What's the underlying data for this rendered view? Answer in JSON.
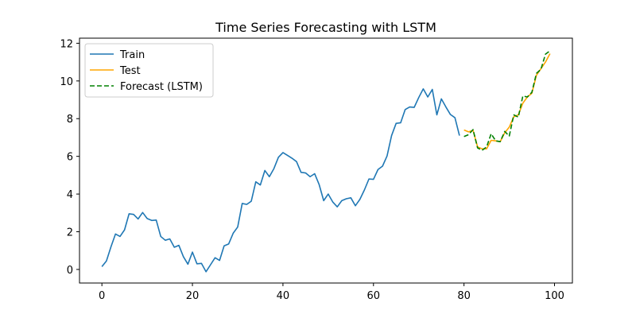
{
  "chart_data": {
    "type": "line",
    "title": "Time Series Forecasting with LSTM",
    "xlabel": "",
    "ylabel": "",
    "xlim": [
      -4.95,
      103.95
    ],
    "ylim": [
      -0.72,
      12.27
    ],
    "xticks": [
      0,
      20,
      40,
      60,
      80,
      100
    ],
    "yticks": [
      0,
      2,
      4,
      6,
      8,
      10,
      12
    ],
    "grid": false,
    "legend": "top-left",
    "series": [
      {
        "name": "Train",
        "color": "#1f77b4",
        "style": "solid",
        "x": [
          0,
          1,
          2,
          3,
          4,
          5,
          6,
          7,
          8,
          9,
          10,
          11,
          12,
          13,
          14,
          15,
          16,
          17,
          18,
          19,
          20,
          21,
          22,
          23,
          24,
          25,
          26,
          27,
          28,
          29,
          30,
          31,
          32,
          33,
          34,
          35,
          36,
          37,
          38,
          39,
          40,
          41,
          42,
          43,
          44,
          45,
          46,
          47,
          48,
          49,
          50,
          51,
          52,
          53,
          54,
          55,
          56,
          57,
          58,
          59,
          60,
          61,
          62,
          63,
          64,
          65,
          66,
          67,
          68,
          69,
          70,
          71,
          72,
          73,
          74,
          75,
          76,
          77,
          78,
          79
        ],
        "y": [
          0.15,
          0.45,
          1.2,
          1.88,
          1.75,
          2.1,
          2.95,
          2.92,
          2.68,
          3.02,
          2.7,
          2.6,
          2.62,
          1.75,
          1.55,
          1.62,
          1.18,
          1.28,
          0.68,
          0.28,
          0.92,
          0.3,
          0.32,
          -0.12,
          0.25,
          0.62,
          0.48,
          1.25,
          1.35,
          1.92,
          2.25,
          3.5,
          3.45,
          3.62,
          4.65,
          4.48,
          5.25,
          4.92,
          5.35,
          5.95,
          6.2,
          6.05,
          5.9,
          5.72,
          5.15,
          5.12,
          4.92,
          5.08,
          4.5,
          3.65,
          4.0,
          3.58,
          3.32,
          3.65,
          3.75,
          3.8,
          3.38,
          3.72,
          4.22,
          4.8,
          4.78,
          5.3,
          5.48,
          6.02,
          7.1,
          7.75,
          7.78,
          8.48,
          8.62,
          8.6,
          9.12,
          9.58,
          9.15,
          9.55,
          8.2,
          9.05,
          8.62,
          8.22,
          8.05,
          7.1
        ]
      },
      {
        "name": "Test",
        "color": "#ffa500",
        "style": "solid",
        "x": [
          80,
          81,
          82,
          83,
          84,
          85,
          86,
          87,
          88,
          89,
          90,
          91,
          92,
          93,
          94,
          95,
          96,
          97,
          98,
          99
        ],
        "y": [
          7.4,
          7.3,
          7.38,
          6.5,
          6.4,
          6.4,
          6.85,
          6.82,
          6.78,
          7.25,
          7.55,
          8.1,
          8.2,
          8.82,
          9.15,
          9.35,
          10.3,
          10.65,
          11.0,
          11.45
        ]
      },
      {
        "name": "Forecast (LSTM)",
        "color": "#008000",
        "style": "dashed",
        "x": [
          80,
          81,
          82,
          83,
          84,
          85,
          86,
          87,
          88,
          89,
          90,
          91,
          92,
          93,
          94,
          95,
          96,
          97,
          98,
          99
        ],
        "y": [
          7.05,
          7.15,
          7.42,
          6.45,
          6.32,
          6.5,
          7.2,
          6.82,
          6.78,
          7.32,
          7.08,
          8.2,
          8.08,
          9.2,
          9.15,
          9.4,
          10.4,
          10.62,
          11.42,
          11.6
        ]
      }
    ]
  }
}
